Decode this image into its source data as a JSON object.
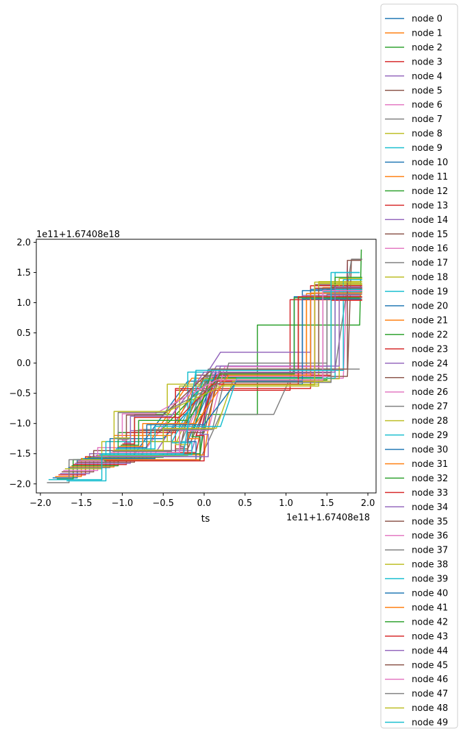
{
  "chart_data": {
    "type": "line",
    "title": "",
    "xlabel": "ts",
    "ylabel": "",
    "x_offset_text": "1e11+1.67408e18",
    "y_offset_text": "1e11+1.67408e18",
    "xlim": [
      -2.05,
      2.1
    ],
    "ylim": [
      -2.15,
      2.05
    ],
    "x_ticks": [
      -2.0,
      -1.5,
      -1.0,
      -0.5,
      0.0,
      0.5,
      1.0,
      1.5,
      2.0
    ],
    "x_tick_labels": [
      "−2.0",
      "−1.5",
      "−1.0",
      "−0.5",
      "0.0",
      "0.5",
      "1.0",
      "1.5",
      "2.0"
    ],
    "y_ticks": [
      -2.0,
      -1.5,
      -1.0,
      -0.5,
      0.0,
      0.5,
      1.0,
      1.5,
      2.0
    ],
    "y_tick_labels": [
      "−2.0",
      "−1.5",
      "−1.0",
      "−0.5",
      "0.0",
      "0.5",
      "1.0",
      "1.5",
      "2.0"
    ],
    "grid": false,
    "legend_position": "right, outside plot",
    "palette": [
      "#1f77b4",
      "#ff7f0e",
      "#2ca02c",
      "#d62728",
      "#9467bd",
      "#8c564b",
      "#e377c2",
      "#7f7f7f",
      "#bcbd22",
      "#17becf"
    ],
    "series": [
      {
        "name": "node 0",
        "x": [
          -1.85,
          -1.55,
          -1.55,
          -0.9,
          -0.2,
          1.1,
          1.1,
          1.9
        ],
        "y": [
          -1.9,
          -1.9,
          -1.6,
          -1.6,
          -0.3,
          -0.3,
          1.1,
          1.1
        ]
      },
      {
        "name": "node 1",
        "x": [
          -1.82,
          -1.5,
          -1.5,
          -0.8,
          -0.15,
          1.25,
          1.25,
          1.92
        ],
        "y": [
          -1.88,
          -1.88,
          -1.58,
          -1.58,
          -0.25,
          -0.25,
          1.15,
          1.15
        ]
      },
      {
        "name": "node 2",
        "x": [
          -1.8,
          -1.6,
          -1.6,
          -0.85,
          -0.85,
          0.65,
          0.65,
          1.9,
          1.92
        ],
        "y": [
          -1.92,
          -1.92,
          -1.6,
          -1.6,
          -0.85,
          -0.85,
          0.63,
          0.63,
          1.88
        ]
      },
      {
        "name": "node 3",
        "x": [
          -1.78,
          -1.45,
          -1.45,
          -0.35,
          -0.35,
          1.05,
          1.05,
          1.93
        ],
        "y": [
          -1.85,
          -1.85,
          -1.55,
          -1.55,
          -0.45,
          -0.45,
          1.05,
          1.05
        ]
      },
      {
        "name": "node 4",
        "x": [
          -1.76,
          -1.4,
          -1.4,
          -0.6,
          0.2,
          1.3,
          1.3,
          1.9
        ],
        "y": [
          -1.83,
          -1.83,
          -1.5,
          -1.5,
          0.18,
          0.18,
          1.1,
          1.1
        ]
      },
      {
        "name": "node 5",
        "x": [
          -1.74,
          -1.35,
          -1.35,
          -0.3,
          -0.1,
          1.35,
          1.35,
          1.93
        ],
        "y": [
          -1.8,
          -1.8,
          -1.45,
          -1.45,
          -0.2,
          -0.2,
          1.3,
          1.3
        ]
      },
      {
        "name": "node 6",
        "x": [
          -1.72,
          -1.3,
          -1.3,
          -0.7,
          -0.05,
          1.7,
          1.75,
          1.92
        ],
        "y": [
          -1.78,
          -1.78,
          -1.4,
          -1.4,
          -0.25,
          -0.25,
          1.7,
          1.7
        ]
      },
      {
        "name": "node 7",
        "x": [
          -1.92,
          -1.65,
          -1.65,
          -0.05,
          0.2,
          0.85,
          1.1,
          1.9
        ],
        "y": [
          -1.98,
          -1.98,
          -1.6,
          -1.6,
          -0.85,
          -0.85,
          -0.1,
          -0.1
        ]
      },
      {
        "name": "node 8",
        "x": [
          -1.7,
          -1.25,
          -1.25,
          -0.45,
          -0.45,
          1.4,
          1.4,
          1.93
        ],
        "y": [
          -1.75,
          -1.75,
          -1.3,
          -1.3,
          -0.35,
          -0.35,
          1.35,
          1.35
        ]
      },
      {
        "name": "node 9",
        "x": [
          -1.68,
          -1.2,
          -1.2,
          -0.2,
          -0.2,
          1.6,
          1.6,
          1.9
        ],
        "y": [
          -1.95,
          -1.95,
          -1.3,
          -1.3,
          -0.15,
          -0.15,
          1.5,
          1.5
        ]
      },
      {
        "name": "node 10",
        "x": [
          -1.66,
          -1.15,
          -1.15,
          -0.5,
          0.1,
          1.2,
          1.2,
          1.93
        ],
        "y": [
          -1.73,
          -1.73,
          -1.25,
          -1.25,
          -0.35,
          -0.35,
          1.2,
          1.2
        ]
      },
      {
        "name": "node 11",
        "x": [
          -1.64,
          -1.1,
          -1.1,
          -0.4,
          -0.1,
          1.45,
          1.45,
          1.92
        ],
        "y": [
          -1.72,
          -1.72,
          -1.2,
          -1.2,
          -0.3,
          -0.3,
          1.25,
          1.25
        ]
      },
      {
        "name": "node 12",
        "x": [
          -1.62,
          -1.05,
          -1.05,
          -0.55,
          0.05,
          1.5,
          1.5,
          1.93
        ],
        "y": [
          -1.7,
          -1.7,
          -1.15,
          -1.15,
          -0.28,
          -0.28,
          1.22,
          1.22
        ]
      },
      {
        "name": "node 13",
        "x": [
          -1.6,
          -0.95,
          -0.95,
          -0.35,
          -0.35,
          1.3,
          1.3,
          1.93
        ],
        "y": [
          -1.68,
          -1.68,
          -1.15,
          -1.15,
          -0.42,
          -0.42,
          1.28,
          1.28
        ]
      },
      {
        "name": "node 14",
        "x": [
          -1.58,
          -0.9,
          -0.9,
          -0.3,
          0.15,
          1.55,
          1.55,
          1.9
        ],
        "y": [
          -1.66,
          -1.66,
          -1.12,
          -1.12,
          -0.05,
          -0.05,
          1.3,
          1.3
        ]
      },
      {
        "name": "node 15",
        "x": [
          -1.56,
          -0.85,
          -0.85,
          -0.25,
          0.0,
          1.75,
          1.8,
          1.93
        ],
        "y": [
          -1.64,
          -1.64,
          -1.12,
          -1.12,
          -0.22,
          -0.22,
          1.72,
          1.72
        ]
      },
      {
        "name": "node 16",
        "x": [
          -1.54,
          -0.8,
          -0.8,
          -0.2,
          0.1,
          1.35,
          1.35,
          1.92
        ],
        "y": [
          -1.62,
          -1.62,
          -1.1,
          -1.1,
          -0.18,
          -0.18,
          1.15,
          1.15
        ]
      },
      {
        "name": "node 17",
        "x": [
          -1.52,
          -0.75,
          -0.75,
          -0.15,
          0.05,
          1.6,
          1.8,
          1.93
        ],
        "y": [
          -1.6,
          -1.6,
          -1.1,
          -1.1,
          -0.1,
          -0.1,
          1.72,
          1.72
        ]
      },
      {
        "name": "node 18",
        "x": [
          -1.5,
          -0.7,
          -0.7,
          -0.3,
          -0.3,
          1.4,
          1.4,
          1.93
        ],
        "y": [
          -1.6,
          -1.6,
          -1.3,
          -1.3,
          -0.38,
          -0.38,
          1.32,
          1.32
        ]
      },
      {
        "name": "node 19",
        "x": [
          -1.48,
          -0.65,
          -0.65,
          -0.1,
          -0.1,
          1.7,
          1.7,
          1.93
        ],
        "y": [
          -1.58,
          -1.58,
          -1.0,
          -1.0,
          -0.12,
          -0.12,
          1.38,
          1.38
        ]
      },
      {
        "name": "node 20",
        "x": [
          -1.46,
          -0.6,
          -0.6,
          -0.05,
          0.05,
          1.15,
          1.15,
          1.9
        ],
        "y": [
          -1.58,
          -1.58,
          -1.55,
          -1.55,
          -0.25,
          -0.25,
          1.08,
          1.08
        ]
      },
      {
        "name": "node 21",
        "x": [
          -1.44,
          -0.55,
          -0.55,
          0.0,
          0.15,
          1.25,
          1.25,
          1.92
        ],
        "y": [
          -1.56,
          -1.56,
          -1.52,
          -1.52,
          -0.2,
          -0.2,
          1.12,
          1.12
        ]
      },
      {
        "name": "node 22",
        "x": [
          -1.42,
          -0.5,
          -0.5,
          -0.05,
          0.1,
          1.45,
          1.45,
          1.93
        ],
        "y": [
          -1.56,
          -1.56,
          -1.5,
          -1.5,
          -0.24,
          -0.24,
          1.18,
          1.18
        ]
      },
      {
        "name": "node 23",
        "x": [
          -1.4,
          -0.45,
          -0.45,
          -0.1,
          0.1,
          1.35,
          1.35,
          1.93
        ],
        "y": [
          -1.55,
          -1.55,
          -1.48,
          -1.48,
          -0.3,
          -0.3,
          1.24,
          1.24
        ]
      },
      {
        "name": "node 24",
        "x": [
          -1.38,
          -0.4,
          -0.4,
          -0.15,
          0.15,
          1.2,
          1.2,
          1.9
        ],
        "y": [
          -1.55,
          -1.55,
          -1.45,
          -1.45,
          -0.1,
          -0.1,
          1.12,
          1.12
        ]
      },
      {
        "name": "node 25",
        "x": [
          -1.36,
          -0.35,
          -0.35,
          -0.2,
          0.2,
          1.55,
          1.55,
          1.93
        ],
        "y": [
          -1.54,
          -1.54,
          -1.42,
          -1.42,
          -0.16,
          -0.16,
          1.26,
          1.26
        ]
      },
      {
        "name": "node 26",
        "x": [
          -1.34,
          -0.3,
          -0.3,
          -0.25,
          0.1,
          1.5,
          1.5,
          1.92
        ],
        "y": [
          -1.54,
          -1.54,
          -1.4,
          -1.4,
          -0.22,
          -0.22,
          1.2,
          1.2
        ]
      },
      {
        "name": "node 27",
        "x": [
          -1.32,
          -0.25,
          -0.25,
          -0.3,
          0.05,
          1.5,
          1.5,
          1.93
        ],
        "y": [
          -1.53,
          -1.53,
          -1.38,
          -1.38,
          -0.2,
          -0.2,
          1.08,
          1.08
        ]
      },
      {
        "name": "node 28",
        "x": [
          -1.3,
          -0.2,
          -0.2,
          -0.35,
          0.0,
          1.65,
          1.65,
          1.93
        ],
        "y": [
          -1.53,
          -1.53,
          -1.35,
          -1.35,
          -0.26,
          -0.26,
          1.4,
          1.4
        ]
      },
      {
        "name": "node 29",
        "x": [
          -1.28,
          -0.15,
          -0.15,
          -0.4,
          0.0,
          1.45,
          1.45,
          1.92
        ],
        "y": [
          -1.52,
          -1.52,
          -1.32,
          -1.32,
          -0.28,
          -0.28,
          1.18,
          1.18
        ]
      },
      {
        "name": "node 30",
        "x": [
          -1.26,
          -0.1,
          -0.1,
          -0.2,
          0.15,
          1.3,
          1.3,
          1.93
        ],
        "y": [
          -1.6,
          -1.6,
          -1.3,
          -1.3,
          -0.15,
          -0.15,
          1.22,
          1.22
        ]
      },
      {
        "name": "node 31",
        "x": [
          -1.24,
          -0.05,
          -0.05,
          -0.2,
          0.05,
          1.15,
          1.15,
          1.9
        ],
        "y": [
          -1.6,
          -1.6,
          -1.25,
          -1.25,
          -0.35,
          -0.35,
          1.1,
          1.1
        ]
      },
      {
        "name": "node 32",
        "x": [
          -1.22,
          -0.05,
          -0.05,
          -0.15,
          0.1,
          1.6,
          1.6,
          1.93
        ],
        "y": [
          -1.62,
          -1.62,
          -1.22,
          -1.22,
          -0.1,
          -0.1,
          1.42,
          1.42
        ]
      },
      {
        "name": "node 33",
        "x": [
          -1.2,
          0.0,
          0.0,
          -0.1,
          0.15,
          1.55,
          1.55,
          1.93
        ],
        "y": [
          -1.62,
          -1.62,
          -1.2,
          -1.2,
          -0.2,
          -0.2,
          1.04,
          1.04
        ]
      },
      {
        "name": "node 34",
        "x": [
          -1.18,
          0.05,
          0.05,
          -0.05,
          0.2,
          1.65,
          1.65,
          1.92
        ],
        "y": [
          -1.55,
          -1.55,
          -1.18,
          -1.18,
          -0.05,
          -0.05,
          1.2,
          1.2
        ]
      },
      {
        "name": "node 35",
        "x": [
          -1.16,
          -0.2,
          -0.2,
          0.0,
          0.2,
          1.4,
          1.4,
          1.93
        ],
        "y": [
          -1.5,
          -1.5,
          -1.15,
          -1.15,
          -0.12,
          -0.12,
          1.24,
          1.24
        ]
      },
      {
        "name": "node 36",
        "x": [
          -1.14,
          -0.3,
          -0.3,
          0.05,
          0.25,
          1.45,
          1.45,
          1.93
        ],
        "y": [
          -1.48,
          -1.48,
          -1.12,
          -1.12,
          -0.06,
          -0.06,
          1.16,
          1.16
        ]
      },
      {
        "name": "node 37",
        "x": [
          -1.12,
          -0.4,
          -0.4,
          0.1,
          0.3,
          1.5,
          1.5,
          1.9
        ],
        "y": [
          -1.46,
          -1.46,
          -1.1,
          -1.1,
          0.0,
          0.0,
          1.14,
          1.14
        ]
      },
      {
        "name": "node 38",
        "x": [
          -1.1,
          -0.5,
          -0.5,
          0.15,
          0.35,
          1.55,
          1.55,
          1.93
        ],
        "y": [
          -1.44,
          -1.44,
          -1.08,
          -1.08,
          -0.3,
          -0.3,
          1.3,
          1.3
        ]
      },
      {
        "name": "node 39",
        "x": [
          -1.08,
          -0.6,
          -0.6,
          0.2,
          0.4,
          1.6,
          1.6,
          1.93
        ],
        "y": [
          -1.42,
          -1.42,
          -1.05,
          -1.05,
          -0.25,
          -0.25,
          1.22,
          1.22
        ]
      },
      {
        "name": "node 40",
        "x": [
          -1.06,
          -0.7,
          -0.7,
          0.0,
          0.4,
          1.2,
          1.2,
          1.92
        ],
        "y": [
          -1.4,
          -1.4,
          -1.02,
          -1.02,
          -0.3,
          -0.3,
          1.06,
          1.06
        ]
      },
      {
        "name": "node 41",
        "x": [
          -1.04,
          -0.75,
          -0.75,
          -0.1,
          0.3,
          1.3,
          1.3,
          1.93
        ],
        "y": [
          -1.38,
          -1.38,
          -1.0,
          -1.0,
          -0.2,
          -0.2,
          1.16,
          1.16
        ]
      },
      {
        "name": "node 42",
        "x": [
          -1.02,
          -0.8,
          -0.8,
          -0.2,
          0.2,
          1.1,
          1.1,
          1.9
        ],
        "y": [
          -1.36,
          -1.36,
          -0.95,
          -0.95,
          -0.18,
          -0.18,
          1.08,
          1.08
        ]
      },
      {
        "name": "node 43",
        "x": [
          -1.0,
          -0.85,
          -0.85,
          -0.3,
          0.1,
          1.15,
          1.15,
          1.93
        ],
        "y": [
          -1.34,
          -1.34,
          -0.9,
          -0.9,
          -0.35,
          -0.35,
          1.1,
          1.1
        ]
      },
      {
        "name": "node 44",
        "x": [
          -0.98,
          -0.9,
          -0.9,
          -0.4,
          0.0,
          1.6,
          1.6,
          1.93
        ],
        "y": [
          -1.32,
          -1.32,
          -0.88,
          -0.88,
          -0.15,
          -0.15,
          1.26,
          1.26
        ]
      },
      {
        "name": "node 45",
        "x": [
          -0.96,
          -0.95,
          -0.95,
          -0.5,
          0.1,
          1.75,
          1.75,
          1.92
        ],
        "y": [
          -1.3,
          -1.3,
          -0.86,
          -0.86,
          -0.1,
          -0.1,
          1.7,
          1.7
        ]
      },
      {
        "name": "node 46",
        "x": [
          -0.94,
          -1.0,
          -1.0,
          -0.6,
          0.15,
          1.45,
          1.45,
          1.93
        ],
        "y": [
          -1.28,
          -1.28,
          -0.84,
          -0.84,
          -0.28,
          -0.28,
          1.2,
          1.2
        ]
      },
      {
        "name": "node 47",
        "x": [
          -0.92,
          -1.05,
          -1.05,
          -0.5,
          0.2,
          1.55,
          1.55,
          1.93
        ],
        "y": [
          -1.26,
          -1.26,
          -0.82,
          -0.82,
          -0.32,
          -0.32,
          1.14,
          1.14
        ]
      },
      {
        "name": "node 48",
        "x": [
          -0.9,
          -1.1,
          -1.1,
          -0.45,
          0.25,
          1.35,
          1.35,
          1.9
        ],
        "y": [
          -1.24,
          -1.24,
          -0.8,
          -0.8,
          -0.36,
          -0.36,
          1.34,
          1.34
        ]
      },
      {
        "name": "node 49",
        "x": [
          -1.9,
          -1.25,
          -1.25,
          -0.25,
          -0.1,
          1.55,
          1.55,
          1.9
        ],
        "y": [
          -1.93,
          -1.93,
          -1.5,
          -1.5,
          -0.12,
          -0.12,
          1.5,
          1.5
        ]
      }
    ]
  }
}
